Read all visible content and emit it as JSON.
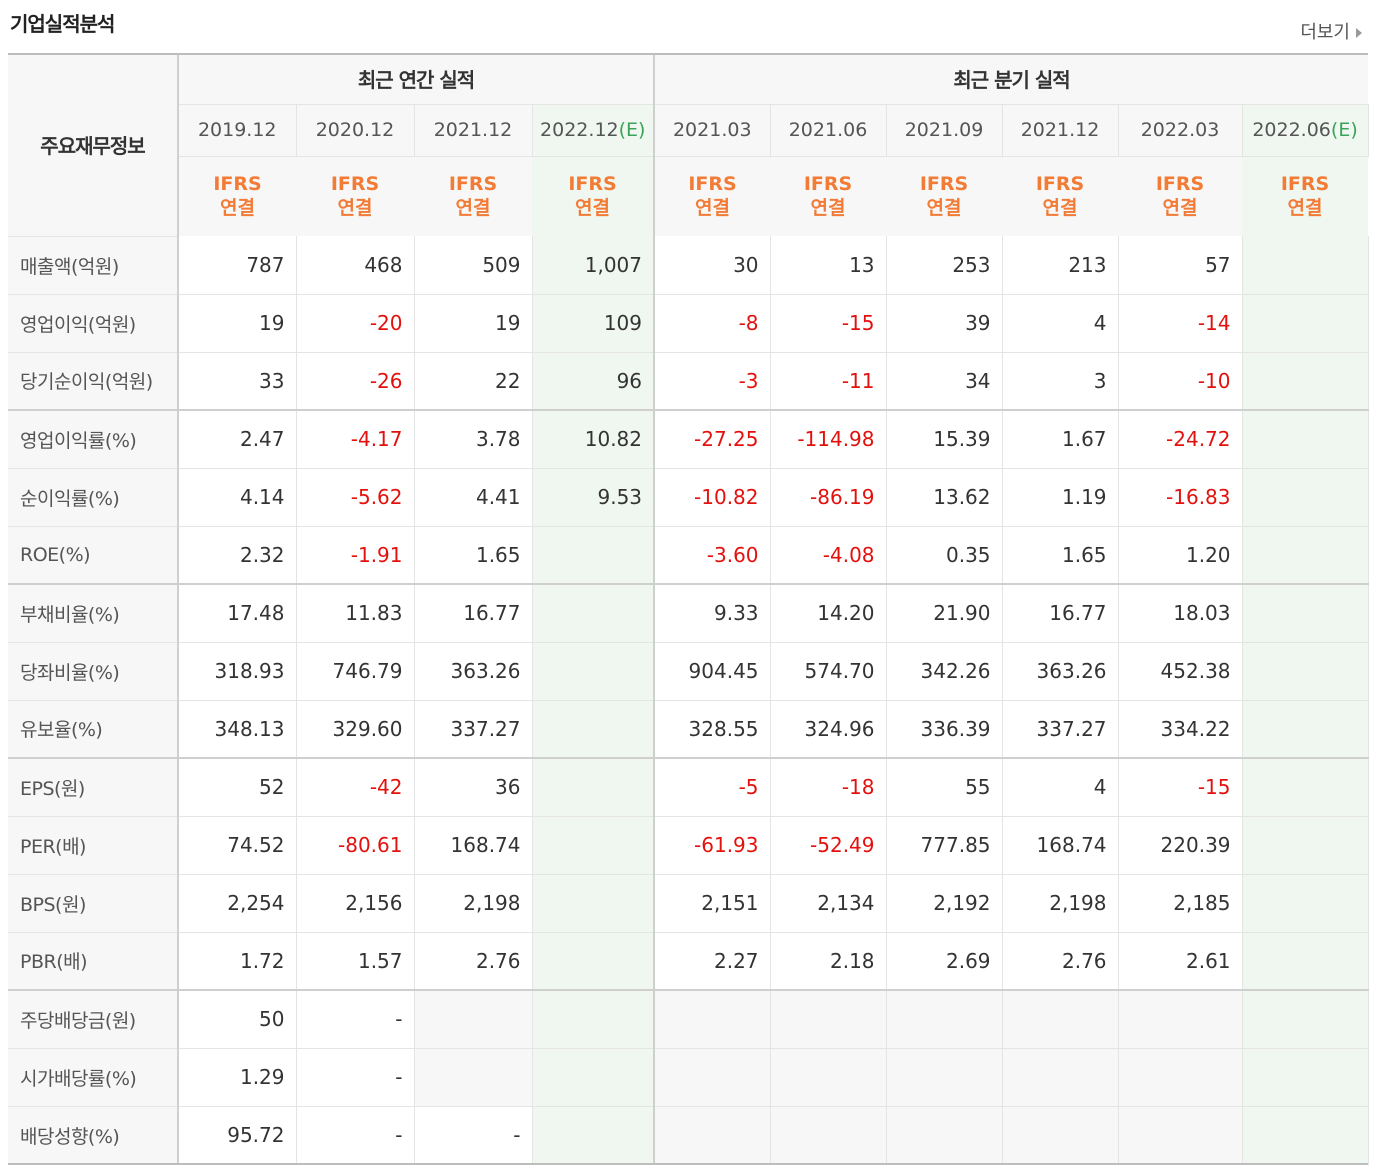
{
  "title": "기업실적분석",
  "more_label": "더보기",
  "header": {
    "row_label": "주요재무정보",
    "annual_group": "최근 연간 실적",
    "quarter_group": "최근 분기 실적",
    "periods": [
      "2019.12",
      "2020.12",
      "2021.12",
      "2022.12",
      "2021.03",
      "2021.06",
      "2021.09",
      "2021.12",
      "2022.03",
      "2022.06"
    ],
    "estimate_mark": "(E)",
    "ifrs_line1": "IFRS",
    "ifrs_line2": "연결"
  },
  "rows": [
    {
      "label": "매출액(억원)",
      "values": [
        "787",
        "468",
        "509",
        "1,007",
        "30",
        "13",
        "253",
        "213",
        "57",
        ""
      ]
    },
    {
      "label": "영업이익(억원)",
      "values": [
        "19",
        "-20",
        "19",
        "109",
        "-8",
        "-15",
        "39",
        "4",
        "-14",
        ""
      ]
    },
    {
      "label": "당기순이익(억원)",
      "values": [
        "33",
        "-26",
        "22",
        "96",
        "-3",
        "-11",
        "34",
        "3",
        "-10",
        ""
      ]
    },
    {
      "label": "영업이익률(%)",
      "values": [
        "2.47",
        "-4.17",
        "3.78",
        "10.82",
        "-27.25",
        "-114.98",
        "15.39",
        "1.67",
        "-24.72",
        ""
      ]
    },
    {
      "label": "순이익률(%)",
      "values": [
        "4.14",
        "-5.62",
        "4.41",
        "9.53",
        "-10.82",
        "-86.19",
        "13.62",
        "1.19",
        "-16.83",
        ""
      ]
    },
    {
      "label": "ROE(%)",
      "values": [
        "2.32",
        "-1.91",
        "1.65",
        "",
        "-3.60",
        "-4.08",
        "0.35",
        "1.65",
        "1.20",
        ""
      ]
    },
    {
      "label": "부채비율(%)",
      "values": [
        "17.48",
        "11.83",
        "16.77",
        "",
        "9.33",
        "14.20",
        "21.90",
        "16.77",
        "18.03",
        ""
      ]
    },
    {
      "label": "당좌비율(%)",
      "values": [
        "318.93",
        "746.79",
        "363.26",
        "",
        "904.45",
        "574.70",
        "342.26",
        "363.26",
        "452.38",
        ""
      ]
    },
    {
      "label": "유보율(%)",
      "values": [
        "348.13",
        "329.60",
        "337.27",
        "",
        "328.55",
        "324.96",
        "336.39",
        "337.27",
        "334.22",
        ""
      ]
    },
    {
      "label": "EPS(원)",
      "values": [
        "52",
        "-42",
        "36",
        "",
        "-5",
        "-18",
        "55",
        "4",
        "-15",
        ""
      ]
    },
    {
      "label": "PER(배)",
      "values": [
        "74.52",
        "-80.61",
        "168.74",
        "",
        "-61.93",
        "-52.49",
        "777.85",
        "168.74",
        "220.39",
        ""
      ]
    },
    {
      "label": "BPS(원)",
      "values": [
        "2,254",
        "2,156",
        "2,198",
        "",
        "2,151",
        "2,134",
        "2,192",
        "2,198",
        "2,185",
        ""
      ]
    },
    {
      "label": "PBR(배)",
      "values": [
        "1.72",
        "1.57",
        "2.76",
        "",
        "2.27",
        "2.18",
        "2.69",
        "2.76",
        "2.61",
        ""
      ]
    },
    {
      "label": "주당배당금(원)",
      "values": [
        "50",
        "-",
        "",
        "",
        "",
        "",
        "",
        "",
        "",
        ""
      ]
    },
    {
      "label": "시가배당률(%)",
      "values": [
        "1.29",
        "-",
        "",
        "",
        "",
        "",
        "",
        "",
        "",
        ""
      ]
    },
    {
      "label": "배당성향(%)",
      "values": [
        "95.72",
        "-",
        "-",
        "",
        "",
        "",
        "",
        "",
        "",
        ""
      ]
    }
  ],
  "colors": {
    "negative": "#e3110d",
    "ifrs": "#f27b35",
    "estimate": "#3aa35a"
  }
}
